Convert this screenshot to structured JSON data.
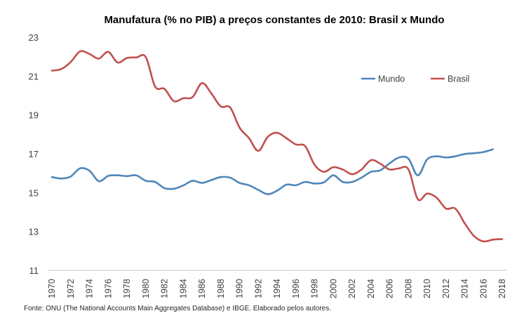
{
  "chart_data": {
    "type": "line",
    "title": "Manufatura (% no PIB) a preços constantes de 2010: Brasil x Mundo",
    "xlabel": "",
    "ylabel": "",
    "ylim": [
      11,
      23
    ],
    "yticks": [
      "23",
      "21",
      "19",
      "17",
      "15",
      "13",
      "11"
    ],
    "ytick_values": [
      23,
      21,
      19,
      17,
      15,
      13,
      11
    ],
    "xlim": [
      1970,
      2018
    ],
    "xticks": [
      "1970",
      "1972",
      "1974",
      "1976",
      "1978",
      "1980",
      "1982",
      "1984",
      "1986",
      "1988",
      "1990",
      "1992",
      "1994",
      "1996",
      "1998",
      "2000",
      "2002",
      "2004",
      "2006",
      "2008",
      "2010",
      "2012",
      "2014",
      "2016",
      "2018"
    ],
    "grid": false,
    "legend_position": "top-right",
    "x": [
      1970,
      1971,
      1972,
      1973,
      1974,
      1975,
      1976,
      1977,
      1978,
      1979,
      1980,
      1981,
      1982,
      1983,
      1984,
      1985,
      1986,
      1987,
      1988,
      1989,
      1990,
      1991,
      1992,
      1993,
      1994,
      1995,
      1996,
      1997,
      1998,
      1999,
      2000,
      2001,
      2002,
      2003,
      2004,
      2005,
      2006,
      2007,
      2008,
      2009,
      2010,
      2011,
      2012,
      2013,
      2014,
      2015,
      2016,
      2017,
      2018
    ],
    "series": [
      {
        "name": "Mundo",
        "color": "#4f86b8",
        "values": [
          15.8,
          15.73,
          15.83,
          16.25,
          16.13,
          15.59,
          15.86,
          15.89,
          15.85,
          15.89,
          15.61,
          15.55,
          15.23,
          15.2,
          15.37,
          15.61,
          15.5,
          15.65,
          15.8,
          15.77,
          15.5,
          15.38,
          15.14,
          14.92,
          15.1,
          15.41,
          15.38,
          15.55,
          15.47,
          15.53,
          15.89,
          15.55,
          15.55,
          15.77,
          16.07,
          16.15,
          16.51,
          16.81,
          16.75,
          15.89,
          16.71,
          16.87,
          16.81,
          16.87,
          16.99,
          17.03,
          17.09,
          17.23,
          null
        ]
      },
      {
        "name": "Brasil",
        "color": "#c0504d",
        "values": [
          21.28,
          21.36,
          21.72,
          22.27,
          22.14,
          21.9,
          22.25,
          21.7,
          21.93,
          21.96,
          21.98,
          20.46,
          20.34,
          19.71,
          19.86,
          19.92,
          20.64,
          20.1,
          19.44,
          19.38,
          18.35,
          17.81,
          17.15,
          17.87,
          18.08,
          17.8,
          17.48,
          17.39,
          16.43,
          16.07,
          16.31,
          16.19,
          15.95,
          16.19,
          16.67,
          16.49,
          16.19,
          16.25,
          16.2,
          14.66,
          14.95,
          14.74,
          14.18,
          14.18,
          13.42,
          12.76,
          12.49,
          12.58,
          12.61
        ]
      }
    ],
    "source": "Fonte: ONU (The National Accounts Main Aggregates Database) e IBGE. Elaborado pelos autores."
  }
}
